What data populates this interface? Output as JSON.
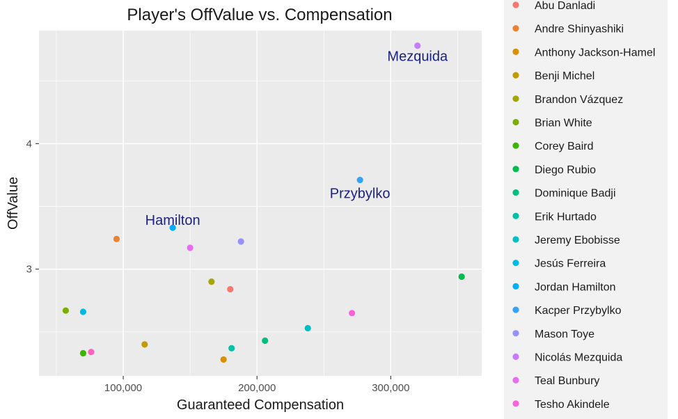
{
  "chart_data": {
    "type": "scatter",
    "title": "Player's OffValue vs. Compensation",
    "xlabel": "Guaranteed Compensation",
    "ylabel": "OffValue",
    "xlim": [
      37000,
      368000
    ],
    "ylim": [
      2.15,
      4.9
    ],
    "x_ticks": [
      100000,
      200000,
      300000
    ],
    "x_tick_labels": [
      "100,000",
      "200,000",
      "300,000"
    ],
    "x_minor_ticks": [
      50000,
      150000,
      250000,
      350000
    ],
    "y_ticks": [
      3,
      4
    ],
    "y_tick_labels": [
      "3",
      "4"
    ],
    "y_minor_ticks": [
      2.5,
      3.5,
      4.5
    ],
    "grid": true,
    "legend_position": "right",
    "series": [
      {
        "name": "Abu Danladi",
        "color": "#F8766D",
        "x": 180000,
        "y": 2.84
      },
      {
        "name": "Andre Shinyashiki",
        "color": "#EA8331",
        "x": 95000,
        "y": 3.24
      },
      {
        "name": "Anthony Jackson-Hamel",
        "color": "#D89000",
        "x": 175000,
        "y": 2.28
      },
      {
        "name": "Benji Michel",
        "color": "#C09B00",
        "x": 116000,
        "y": 2.4
      },
      {
        "name": "Brandon Vázquez",
        "color": "#A3A500",
        "x": 166000,
        "y": 2.9
      },
      {
        "name": "Brian White",
        "color": "#7CAE00",
        "x": 57000,
        "y": 2.67
      },
      {
        "name": "Corey Baird",
        "color": "#39B600",
        "x": 70000,
        "y": 2.33
      },
      {
        "name": "Diego Rubio",
        "color": "#00BB4E",
        "x": 353000,
        "y": 2.94
      },
      {
        "name": "Dominique Badji",
        "color": "#00BF7D",
        "x": 206000,
        "y": 2.43
      },
      {
        "name": "Erik Hurtado",
        "color": "#00C1A3",
        "x": 181000,
        "y": 2.37
      },
      {
        "name": "Jeremy Ebobisse",
        "color": "#00BFC4",
        "x": 238000,
        "y": 2.53
      },
      {
        "name": "Jesús Ferreira",
        "color": "#00BAE0",
        "x": 70000,
        "y": 2.66
      },
      {
        "name": "Jordan Hamilton",
        "color": "#00B0F6",
        "x": 137000,
        "y": 3.33
      },
      {
        "name": "Kacper Przybylko",
        "color": "#35A2FF",
        "x": 277000,
        "y": 3.71
      },
      {
        "name": "Mason Toye",
        "color": "#9590FF",
        "x": 188000,
        "y": 3.22
      },
      {
        "name": "Nicolás Mezquida",
        "color": "#C77CFF",
        "x": 320000,
        "y": 4.78
      },
      {
        "name": "Teal Bunbury",
        "color": "#E76BF3",
        "x": 150000,
        "y": 3.17
      },
      {
        "name": "Tesho Akindele",
        "color": "#FA62DB",
        "x": 271000,
        "y": 2.65
      },
      {
        "name": "",
        "color": "#FF62BC",
        "x": 76000,
        "y": 2.34
      }
    ],
    "annotations": [
      {
        "text": "Mezquida",
        "x": 320000,
        "y": 4.78
      },
      {
        "text": "Przybylko",
        "x": 277000,
        "y": 3.71
      },
      {
        "text": "Hamilton",
        "x": 137000,
        "y": 3.33
      }
    ]
  }
}
